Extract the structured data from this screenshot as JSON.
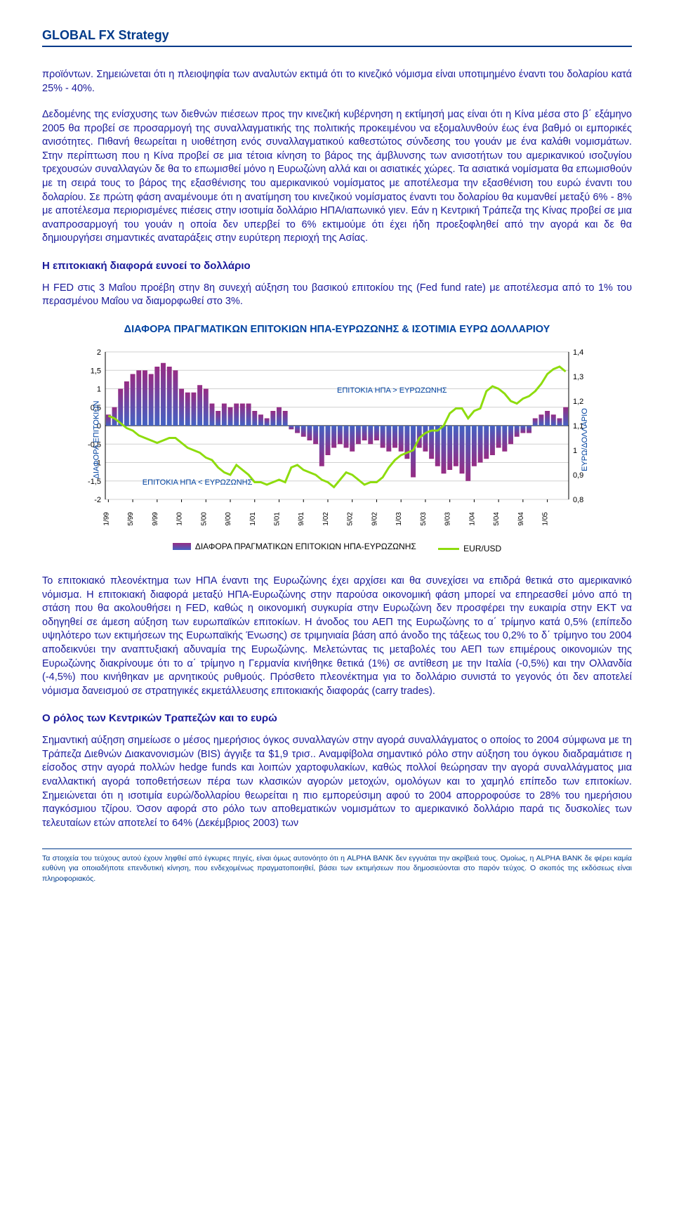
{
  "header": {
    "brand": "GLOBAL FX Strategy"
  },
  "para1": "προϊόντων. Σημειώνεται ότι η πλειοψηφία των αναλυτών εκτιμά ότι το κινεζικό νόμισμα είναι υποτιμημένο έναντι του δολαρίου κατά 25% - 40%.",
  "para2": "Δεδομένης της ενίσχυσης των διεθνών πιέσεων προς την κινεζική κυβέρνηση η εκτίμησή μας είναι ότι η Κίνα μέσα στο β΄ εξάμηνο 2005 θα προβεί σε προσαρμογή της συναλλαγματικής της πολιτικής προκειμένου να εξομαλυνθούν έως ένα βαθμό οι εμπορικές ανισότητες. Πιθανή θεωρείται η υιοθέτηση ενός συναλλαγματικού καθεστώτος σύνδεσης του γουάν με ένα καλάθι νομισμάτων. Στην περίπτωση που η Κίνα προβεί σε μια τέτοια κίνηση το βάρος της άμβλυνσης των ανισοτήτων του αμερικανικού ισοζυγίου τρεχουσών συναλλαγών δε θα το επωμισθεί μόνο η Ευρωζώνη αλλά και οι ασιατικές χώρες. Τα ασιατικά νομίσματα θα επωμισθούν με τη σειρά τους το βάρος της εξασθένισης του αμερικανικού νομίσματος με αποτέλεσμα την εξασθένιση του ευρώ έναντι του δολαρίου. Σε πρώτη φάση αναμένουμε ότι η ανατίμηση του κινεζικού νομίσματος έναντι του δολαρίου θα κυμανθεί μεταξύ 6% - 8% με αποτέλεσμα περιορισμένες πιέσεις στην ισοτιμία δολλάριο ΗΠΑ/ιαπωνικό γιεν. Εάν η Κεντρική Τράπεζα της Κίνας προβεί σε μια αναπροσαρμογή του γουάν η οποία δεν υπερβεί το 6% εκτιμούμε ότι έχει ήδη προεξοφληθεί από την αγορά και δε θα δημιουργήσει σημαντικές αναταράξεις στην ευρύτερη περιοχή της Ασίας.",
  "heading1": "Η επιτοκιακή διαφορά ευνοεί το δολλάριο",
  "para3": "Η FED στις 3 Μαΐου προέβη στην 8η συνεχή αύξηση του βασικού επιτοκίου της (Fed fund rate) με αποτέλεσμα από το 1% του περασμένου Μαΐου να διαμορφωθεί στο 3%.",
  "chart": {
    "title": "ΔΙΑΦΟΡΑ ΠΡΑΓΜΑΤΙΚΩΝ ΕΠΙΤΟΚΙΩΝ ΗΠΑ-ΕΥΡΩΖΩΝΗΣ & ΙΣΟΤΙΜΙΑ ΕΥΡΩ ΔΟΛΛΑΡΙΟΥ",
    "left_axis_label": "ΔΙΑΦΟΡΑ ΕΠΙΤΟΚΙΩΝ",
    "right_axis_label": "ΕΥΡΩ/ΔΟΛΛΑΡΙΟ",
    "left_min": -2,
    "left_max": 2,
    "left_step": 0.5,
    "right_min": 0.8,
    "right_max": 1.4,
    "right_step": 0.1,
    "x_labels": [
      "1/99",
      "5/99",
      "9/99",
      "1/00",
      "5/00",
      "9/00",
      "1/01",
      "5/01",
      "9/01",
      "1/02",
      "5/02",
      "9/02",
      "1/03",
      "5/03",
      "9/03",
      "1/04",
      "5/04",
      "9/04",
      "1/05"
    ],
    "bar_color_top": "#962c84",
    "bar_color_bottom": "#4462c3",
    "line_color": "#8edc0e",
    "line_width": 3,
    "grid_color": "#d0d0d0",
    "axis_color": "#000000",
    "background": "#ffffff",
    "bars": [
      0.3,
      0.5,
      1.0,
      1.2,
      1.4,
      1.5,
      1.5,
      1.4,
      1.6,
      1.7,
      1.6,
      1.5,
      1.0,
      0.9,
      0.9,
      1.1,
      1.0,
      0.6,
      0.4,
      0.6,
      0.5,
      0.6,
      0.6,
      0.6,
      0.4,
      0.3,
      0.2,
      0.4,
      0.5,
      0.4,
      -0.1,
      -0.2,
      -0.3,
      -0.4,
      -0.5,
      -1.1,
      -0.8,
      -0.6,
      -0.5,
      -0.6,
      -0.7,
      -0.5,
      -0.4,
      -0.5,
      -0.4,
      -0.6,
      -0.7,
      -0.6,
      -0.7,
      -0.9,
      -1.4,
      -0.6,
      -0.7,
      -0.9,
      -1.1,
      -1.3,
      -1.2,
      -1.1,
      -1.3,
      -1.5,
      -1.1,
      -1.0,
      -0.9,
      -0.8,
      -0.6,
      -0.7,
      -0.5,
      -0.3,
      -0.2,
      -0.2,
      0.2,
      0.3,
      0.4,
      0.3,
      0.2,
      0.5
    ],
    "line": [
      1.14,
      1.13,
      1.11,
      1.09,
      1.08,
      1.06,
      1.05,
      1.04,
      1.03,
      1.04,
      1.05,
      1.05,
      1.03,
      1.01,
      1.0,
      0.99,
      0.97,
      0.96,
      0.93,
      0.91,
      0.9,
      0.94,
      0.92,
      0.9,
      0.87,
      0.87,
      0.86,
      0.87,
      0.88,
      0.87,
      0.93,
      0.94,
      0.92,
      0.91,
      0.9,
      0.88,
      0.87,
      0.85,
      0.88,
      0.91,
      0.9,
      0.88,
      0.86,
      0.87,
      0.87,
      0.89,
      0.93,
      0.96,
      0.98,
      0.99,
      1.0,
      1.05,
      1.07,
      1.08,
      1.08,
      1.1,
      1.15,
      1.17,
      1.17,
      1.13,
      1.16,
      1.17,
      1.24,
      1.26,
      1.25,
      1.23,
      1.2,
      1.19,
      1.21,
      1.22,
      1.24,
      1.27,
      1.31,
      1.33,
      1.34,
      1.32
    ],
    "ann_upper": "ΕΠΙΤΟΚΙΑ ΗΠΑ > ΕΥΡΩΖΩΝΗΣ",
    "ann_lower": "ΕΠΙΤΟΚΙΑ ΗΠΑ < ΕΥΡΩΖΩΝΗΣ",
    "legend_bars": "ΔΙΑΦΟΡΑ ΠΡΑΓΜΑΤΙΚΩΝ ΕΠΙΤΟΚΙΩΝ ΗΠΑ-ΕΥΡΩΖΩΝΗΣ",
    "legend_line": "EUR/USD"
  },
  "para4": "Το επιτοκιακό πλεονέκτημα των ΗΠΑ έναντι της Ευρωζώνης έχει αρχίσει και θα συνεχίσει να επιδρά θετικά στο αμερικανικό νόμισμα. Η επιτοκιακή διαφορά μεταξύ ΗΠΑ-Ευρωζώνης στην παρούσα οικονομική φάση μπορεί να επηρεασθεί μόνο από τη στάση που θα ακολουθήσει η FED, καθώς η οικονομική συγκυρία στην Ευρωζώνη δεν προσφέρει την ευκαιρία στην ΕΚΤ να οδηγηθεί σε άμεση αύξηση των ευρωπαϊκών επιτοκίων. Η άνοδος του ΑΕΠ της Ευρωζώνης το α΄ τρίμηνο κατά 0,5% (επίπεδο υψηλότερο των εκτιμήσεων της Ευρωπαϊκής Ένωσης) σε τριμηνιαία βάση από άνοδο της τάξεως του 0,2% το δ΄ τρίμηνο του 2004 αποδεικνύει την αναπτυξιακή αδυναμία της Ευρωζώνης. Μελετώντας τις μεταβολές του ΑΕΠ των επιμέρους οικονομιών της Ευρωζώνης διακρίνουμε ότι το α΄ τρίμηνο η Γερμανία κινήθηκε θετικά (1%) σε αντίθεση με την Ιταλία (-0,5%) και την Ολλανδία (-4,5%) που κινήθηκαν με αρνητικούς ρυθμούς. Πρόσθετο πλεονέκτημα για το δολλάριο συνιστά το γεγονός ότι δεν αποτελεί νόμισμα δανεισμού σε στρατηγικές εκμετάλλευσης επιτοκιακής διαφοράς (carry trades).",
  "heading2": "Ο ρόλος των Κεντρικών Τραπεζών και το ευρώ",
  "para5": "Σημαντική αύξηση σημείωσε ο μέσος ημερήσιος όγκος συναλλαγών στην αγορά συναλλάγματος ο οποίος το 2004 σύμφωνα με τη Τράπεζα Διεθνών Διακανονισμών (BIS) άγγιξε τα $1,9 τρισ.. Αναμφίβολα σημαντικό ρόλο στην αύξηση του όγκου διαδραμάτισε η είσοδος στην αγορά πολλών hedge funds και λοιπών χαρτοφυλακίων, καθώς πολλοί θεώρησαν την αγορά συναλλάγματος μια εναλλακτική αγορά τοποθετήσεων πέρα των κλασικών αγορών μετοχών, ομολόγων και το χαμηλό επίπεδο των επιτοκίων. Σημειώνεται ότι η ισοτιμία ευρώ/δολλαρίου θεωρείται η πιο εμπορεύσιμη αφού το 2004 απορροφούσε το 28% του ημερήσιου παγκόσμιου τζίρου. Όσον αφορά στο ρόλο των αποθεματικών νομισμάτων το αμερικανικό δολλάριο παρά τις δυσκολίες των τελευταίων ετών αποτελεί το 64% (Δεκέμβριος 2003) των",
  "footer": "Τα στοιχεία του τεύχους αυτού έχουν ληφθεί από έγκυρες πηγές, είναι όμως αυτονόητο ότι η ALPHA BANK δεν εγγυάται την ακρίβειά τους. Ομοίως, η ALPHA BANK δε φέρει καμία ευθύνη για οποιαδήποτε επενδυτική κίνηση, που ενδεχομένως πραγματοποιηθεί, βάσει των εκτιμήσεων που δημοσιεύονται στο παρόν τεύχος. Ο σκοπός της εκδόσεως είναι πληροφοριακός."
}
